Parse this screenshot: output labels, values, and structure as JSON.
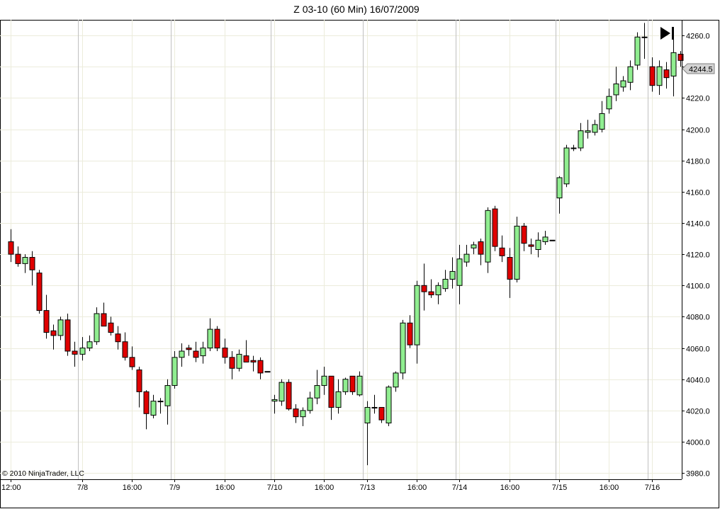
{
  "chart_data": {
    "type": "candlestick",
    "title": "Z 03-10 (60 Min)  16/07/2009",
    "copyright": "© 2010 NinjaTrader, LLC",
    "last_price_label": "4244.5",
    "ylim": [
      3976,
      4270
    ],
    "y_ticks": [
      "4260.0",
      "4240.0",
      "4220.0",
      "4200.0",
      "4180.0",
      "4160.0",
      "4140.0",
      "4120.0",
      "4100.0",
      "4080.0",
      "4060.0",
      "4040.0",
      "4020.0",
      "4000.0",
      "3980.0"
    ],
    "x_ticks": [
      {
        "label": "12:00",
        "bar": 0
      },
      {
        "label": "7/8",
        "bar": 10
      },
      {
        "label": "16:00",
        "bar": 17
      },
      {
        "label": "7/9",
        "bar": 23
      },
      {
        "label": "16:00",
        "bar": 30
      },
      {
        "label": "7/10",
        "bar": 37
      },
      {
        "label": "16:00",
        "bar": 44
      },
      {
        "label": "7/13",
        "bar": 50
      },
      {
        "label": "16:00",
        "bar": 57
      },
      {
        "label": "7/14",
        "bar": 63
      },
      {
        "label": "16:00",
        "bar": 70
      },
      {
        "label": "7/15",
        "bar": 77
      },
      {
        "label": "16:00",
        "bar": 84
      },
      {
        "label": "7/16",
        "bar": 90
      }
    ],
    "day_separators_after_bar": [
      9,
      22,
      36,
      49,
      62,
      76,
      89
    ],
    "colors": {
      "up": "#90EE90",
      "down": "#E00000",
      "outline": "#000000",
      "grid": "#ECECDC",
      "separator": "#C0C0C0"
    },
    "ohlc": [
      [
        4128,
        4136,
        4115,
        4120
      ],
      [
        4120,
        4125,
        4112,
        4114
      ],
      [
        4114,
        4120,
        4108,
        4118
      ],
      [
        4118,
        4122,
        4100,
        4110
      ],
      [
        4108,
        4110,
        4082,
        4084
      ],
      [
        4084,
        4094,
        4066,
        4070
      ],
      [
        4071,
        4075,
        4059,
        4068
      ],
      [
        4068,
        4080,
        4065,
        4078
      ],
      [
        4078,
        4082,
        4055,
        4058
      ],
      [
        4058,
        4064,
        4048,
        4056
      ],
      [
        4056,
        4067,
        4052,
        4060
      ],
      [
        4060,
        4068,
        4058,
        4064
      ],
      [
        4064,
        4086,
        4062,
        4082
      ],
      [
        4082,
        4089,
        4074,
        4074
      ],
      [
        4076,
        4080,
        4068,
        4070
      ],
      [
        4069,
        4074,
        4059,
        4064
      ],
      [
        4064,
        4070,
        4052,
        4054
      ],
      [
        4054,
        4061,
        4046,
        4048
      ],
      [
        4046,
        4048,
        4022,
        4032
      ],
      [
        4032,
        4033,
        4008,
        4018
      ],
      [
        4017,
        4030,
        4015,
        4026
      ],
      [
        4026,
        4028,
        4018,
        4026
      ],
      [
        4023,
        4040,
        4011,
        4036
      ],
      [
        4036,
        4058,
        4034,
        4054
      ],
      [
        4054,
        4063,
        4048,
        4058
      ],
      [
        4060,
        4062,
        4055,
        4059
      ],
      [
        4058,
        4064,
        4051,
        4054
      ],
      [
        4055,
        4064,
        4050,
        4060
      ],
      [
        4060,
        4079,
        4058,
        4072
      ],
      [
        4072,
        4074,
        4058,
        4060
      ],
      [
        4060,
        4066,
        4050,
        4054
      ],
      [
        4054,
        4058,
        4040,
        4047
      ],
      [
        4047,
        4059,
        4045,
        4056
      ],
      [
        4055,
        4065,
        4052,
        4051
      ],
      [
        4052,
        4055,
        4045,
        4051
      ],
      [
        4052,
        4054,
        4040,
        4044
      ],
      [
        4045,
        4045,
        4045,
        4045
      ],
      [
        4026,
        4030,
        4018,
        4027
      ],
      [
        4026,
        4040,
        4023,
        4038
      ],
      [
        4038,
        4040,
        4020,
        4021
      ],
      [
        4021,
        4024,
        4012,
        4016
      ],
      [
        4016,
        4022,
        4010,
        4020
      ],
      [
        4020,
        4032,
        4018,
        4028
      ],
      [
        4028,
        4046,
        4024,
        4036
      ],
      [
        4036,
        4048,
        4030,
        4042
      ],
      [
        4042,
        4042,
        4014,
        4022
      ],
      [
        4022,
        4040,
        4018,
        4032
      ],
      [
        4032,
        4041,
        4030,
        4040
      ],
      [
        4042,
        4042,
        4030,
        4032
      ],
      [
        4030,
        4045,
        4029,
        4042
      ],
      [
        4012,
        4026,
        3985,
        4022
      ],
      [
        4022,
        4030,
        4018,
        4022
      ],
      [
        4022,
        4022,
        4012,
        4014
      ],
      [
        4012,
        4036,
        4010,
        4035
      ],
      [
        4035,
        4045,
        4032,
        4044
      ],
      [
        4044,
        4078,
        4040,
        4076
      ],
      [
        4076,
        4081,
        4060,
        4062
      ],
      [
        4062,
        4103,
        4050,
        4100
      ],
      [
        4100,
        4114,
        4084,
        4096
      ],
      [
        4096,
        4104,
        4092,
        4094
      ],
      [
        4094,
        4102,
        4088,
        4100
      ],
      [
        4098,
        4110,
        4096,
        4104
      ],
      [
        4104,
        4118,
        4098,
        4109
      ],
      [
        4100,
        4126,
        4088,
        4117
      ],
      [
        4115,
        4126,
        4112,
        4120
      ],
      [
        4124,
        4128,
        4120,
        4126
      ],
      [
        4128,
        4130,
        4113,
        4120
      ],
      [
        4115,
        4150,
        4108,
        4148
      ],
      [
        4149,
        4151,
        4122,
        4125
      ],
      [
        4124,
        4132,
        4115,
        4119
      ],
      [
        4118,
        4124,
        4092,
        4104
      ],
      [
        4104,
        4144,
        4102,
        4138
      ],
      [
        4138,
        4140,
        4122,
        4127
      ],
      [
        4126,
        4130,
        4120,
        4125
      ],
      [
        4123,
        4134,
        4118,
        4129
      ],
      [
        4128,
        4135,
        4126,
        4131
      ],
      [
        4129,
        4129,
        4129,
        4129
      ],
      [
        4156,
        4170,
        4146,
        4169
      ],
      [
        4165,
        4190,
        4163,
        4188
      ],
      [
        4188,
        4190,
        4186,
        4188
      ],
      [
        4188,
        4204,
        4186,
        4199
      ],
      [
        4198,
        4206,
        4194,
        4199
      ],
      [
        4198,
        4206,
        4196,
        4203
      ],
      [
        4200,
        4218,
        4198,
        4210
      ],
      [
        4213,
        4226,
        4210,
        4221
      ],
      [
        4222,
        4240,
        4218,
        4229
      ],
      [
        4227,
        4234,
        4224,
        4231
      ],
      [
        4230,
        4244,
        4225,
        4240
      ],
      [
        4241,
        4262,
        4238,
        4259
      ],
      [
        4259,
        4268,
        4245,
        4259
      ],
      [
        4240,
        4246,
        4224,
        4228
      ],
      [
        4228,
        4244,
        4222,
        4240
      ],
      [
        4238,
        4243,
        4226,
        4233
      ],
      [
        4234,
        4262,
        4221,
        4249
      ],
      [
        4248,
        4250,
        4240,
        4244
      ]
    ]
  }
}
